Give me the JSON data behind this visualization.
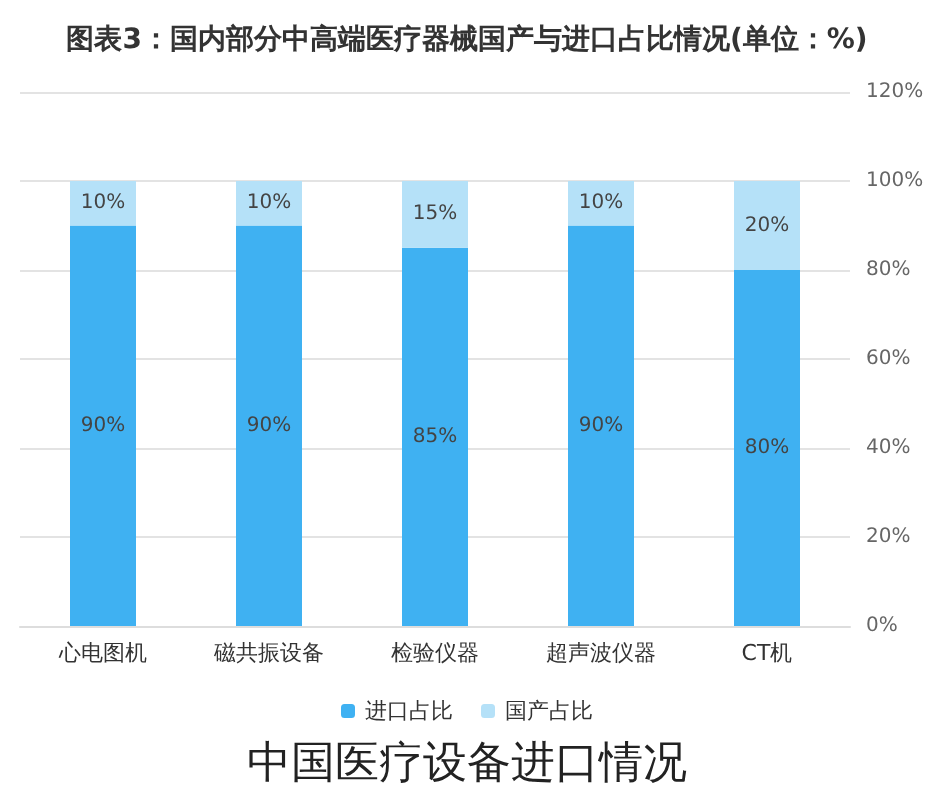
{
  "chart_data": {
    "type": "bar",
    "title": "图表3：国内部分中高端医疗器械国产与进口占比情况(单位：%)",
    "categories": [
      "心电图机",
      "磁共振设备",
      "检验仪器",
      "超声波仪器",
      "CT机"
    ],
    "series": [
      {
        "name": "进口占比",
        "color": "#3fb1f2",
        "values": [
          90,
          90,
          85,
          90,
          80
        ],
        "value_labels": [
          "90%",
          "90%",
          "85%",
          "90%",
          "80%"
        ]
      },
      {
        "name": "国产占比",
        "color": "#b5e1f8",
        "values": [
          10,
          10,
          15,
          10,
          20
        ],
        "value_labels": [
          "10%",
          "10%",
          "15%",
          "10%",
          "20%"
        ]
      }
    ],
    "stacked": true,
    "ylim": [
      0,
      120
    ],
    "yticks": [
      {
        "value": 0,
        "label": "0%"
      },
      {
        "value": 20,
        "label": "20%"
      },
      {
        "value": 40,
        "label": "40%"
      },
      {
        "value": 60,
        "label": "60%"
      },
      {
        "value": 80,
        "label": "80%"
      },
      {
        "value": 100,
        "label": "100%"
      },
      {
        "value": 120,
        "label": "120%"
      }
    ],
    "grid": "y",
    "legend": "bottom",
    "annotations": [
      "中国医疗设备进口情况"
    ]
  }
}
